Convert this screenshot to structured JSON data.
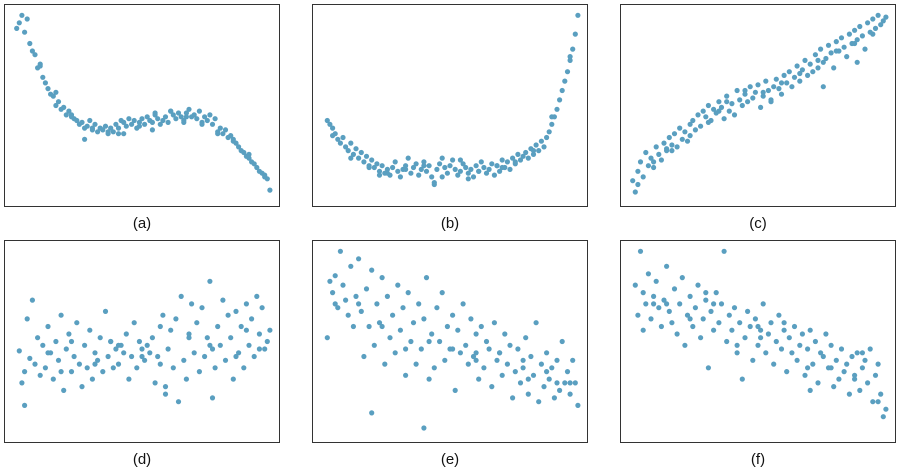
{
  "style": {
    "point_color": "#5a9fc0",
    "frame_color": "#333333"
  },
  "chart_data": [
    {
      "type": "scatter",
      "label": "(a)",
      "title": "",
      "xlabel": "",
      "ylabel": "",
      "xlim": [
        0,
        100
      ],
      "ylim": [
        0,
        100
      ],
      "grid": false,
      "ticks": false,
      "x": [
        2,
        4,
        5,
        6,
        7,
        8,
        9,
        10,
        11,
        12,
        13,
        14,
        15,
        16,
        17,
        18,
        19,
        20,
        21,
        22,
        23,
        24,
        25,
        26,
        27,
        28,
        29,
        30,
        31,
        32,
        33,
        34,
        35,
        36,
        37,
        38,
        39,
        40,
        41,
        42,
        43,
        44,
        45,
        46,
        47,
        48,
        49,
        50,
        51,
        52,
        53,
        54,
        55,
        56,
        57,
        58,
        59,
        60,
        61,
        62,
        63,
        64,
        65,
        66,
        67,
        68,
        69,
        70,
        71,
        72,
        73,
        74,
        75,
        76,
        77,
        78,
        79,
        80,
        81,
        82,
        83,
        84,
        85,
        86,
        87,
        88,
        89,
        90,
        91,
        92,
        93,
        94,
        95,
        96,
        97,
        98,
        99,
        3,
        11,
        17,
        23,
        31,
        37,
        43,
        49,
        55,
        61,
        67,
        73,
        79,
        85,
        91,
        97,
        28,
        41,
        54,
        66
      ],
      "y": [
        91,
        98,
        89,
        96,
        83,
        79,
        77,
        70,
        71,
        65,
        62,
        59,
        56,
        55,
        50,
        52,
        48,
        49,
        45,
        47,
        45,
        43,
        42,
        40,
        41,
        38,
        39,
        42,
        37,
        40,
        36,
        38,
        37,
        39,
        35,
        38,
        36,
        40,
        38,
        42,
        41,
        39,
        43,
        40,
        42,
        38,
        41,
        43,
        40,
        44,
        42,
        41,
        45,
        43,
        40,
        42,
        44,
        41,
        47,
        45,
        43,
        46,
        44,
        42,
        46,
        48,
        44,
        45,
        43,
        47,
        41,
        44,
        42,
        45,
        40,
        43,
        36,
        38,
        35,
        37,
        33,
        34,
        32,
        30,
        28,
        26,
        25,
        23,
        22,
        20,
        19,
        17,
        15,
        14,
        13,
        11,
        5,
        94,
        72,
        57,
        44,
        38,
        36,
        35,
        39,
        46,
        47,
        44,
        40,
        35,
        31,
        24,
        12,
        32,
        35,
        37,
        41
      ]
    },
    {
      "type": "scatter",
      "label": "(b)",
      "title": "",
      "xlabel": "",
      "ylabel": "",
      "xlim": [
        0,
        100
      ],
      "ylim": [
        0,
        100
      ],
      "grid": false,
      "ticks": false,
      "x": [
        3,
        4,
        5,
        6,
        7,
        8,
        9,
        10,
        11,
        12,
        13,
        14,
        15,
        16,
        17,
        18,
        19,
        20,
        21,
        22,
        23,
        24,
        25,
        26,
        27,
        28,
        29,
        30,
        31,
        32,
        33,
        34,
        35,
        36,
        37,
        38,
        39,
        40,
        41,
        42,
        43,
        44,
        45,
        46,
        47,
        48,
        49,
        50,
        51,
        52,
        53,
        54,
        55,
        56,
        57,
        58,
        59,
        60,
        61,
        62,
        63,
        64,
        65,
        66,
        67,
        68,
        69,
        70,
        71,
        72,
        73,
        74,
        75,
        76,
        77,
        78,
        79,
        80,
        81,
        82,
        83,
        84,
        85,
        86,
        87,
        88,
        89,
        90,
        91,
        92,
        93,
        94,
        95,
        96,
        97,
        98,
        99,
        5,
        12,
        19,
        26,
        33,
        40,
        47,
        54,
        61,
        68,
        75,
        82,
        89,
        96,
        23,
        44,
        57,
        70
      ],
      "y": [
        42,
        40,
        38,
        35,
        32,
        30,
        33,
        28,
        26,
        30,
        24,
        27,
        22,
        25,
        20,
        23,
        18,
        21,
        17,
        19,
        15,
        18,
        14,
        16,
        13,
        17,
        20,
        15,
        12,
        16,
        18,
        22,
        14,
        17,
        19,
        13,
        16,
        20,
        15,
        18,
        12,
        9,
        16,
        19,
        22,
        17,
        14,
        18,
        21,
        16,
        13,
        15,
        19,
        17,
        14,
        16,
        12,
        18,
        15,
        20,
        17,
        14,
        16,
        19,
        13,
        18,
        15,
        21,
        17,
        20,
        16,
        22,
        19,
        24,
        21,
        23,
        25,
        22,
        27,
        24,
        29,
        26,
        31,
        28,
        33,
        36,
        40,
        44,
        48,
        53,
        58,
        63,
        68,
        74,
        80,
        88,
        98,
        34,
        22,
        17,
        14,
        16,
        18,
        12,
        21,
        15,
        18,
        20,
        26,
        44,
        76,
        13,
        8,
        11,
        17
      ]
    },
    {
      "type": "scatter",
      "label": "(c)",
      "title": "",
      "xlabel": "",
      "ylabel": "",
      "xlim": [
        0,
        100
      ],
      "ylim": [
        0,
        100
      ],
      "grid": false,
      "ticks": false,
      "x": [
        2,
        3,
        4,
        5,
        6,
        7,
        8,
        9,
        10,
        11,
        12,
        13,
        14,
        15,
        16,
        17,
        18,
        19,
        20,
        21,
        22,
        23,
        24,
        25,
        26,
        27,
        28,
        29,
        30,
        31,
        32,
        33,
        34,
        35,
        36,
        37,
        38,
        39,
        40,
        41,
        42,
        43,
        44,
        45,
        46,
        47,
        48,
        49,
        50,
        51,
        52,
        53,
        54,
        55,
        56,
        57,
        58,
        59,
        60,
        61,
        62,
        63,
        64,
        65,
        66,
        67,
        68,
        69,
        70,
        71,
        72,
        73,
        74,
        75,
        76,
        77,
        78,
        79,
        80,
        81,
        82,
        83,
        84,
        85,
        86,
        87,
        88,
        89,
        90,
        91,
        92,
        93,
        94,
        95,
        96,
        97,
        98,
        99,
        4,
        10,
        17,
        24,
        31,
        38,
        45,
        52,
        59,
        66,
        73,
        80,
        87,
        94,
        15,
        35,
        55,
        75,
        88
      ],
      "y": [
        10,
        4,
        15,
        20,
        12,
        25,
        18,
        22,
        17,
        28,
        24,
        21,
        30,
        26,
        33,
        29,
        35,
        28,
        38,
        32,
        36,
        31,
        40,
        42,
        37,
        45,
        39,
        47,
        44,
        50,
        42,
        48,
        46,
        52,
        49,
        43,
        55,
        47,
        51,
        45,
        58,
        53,
        50,
        56,
        52,
        60,
        54,
        57,
        61,
        49,
        55,
        63,
        58,
        52,
        60,
        64,
        59,
        56,
        66,
        62,
        68,
        60,
        65,
        71,
        63,
        69,
        74,
        66,
        72,
        68,
        77,
        70,
        80,
        73,
        75,
        82,
        78,
        70,
        84,
        79,
        86,
        81,
        76,
        88,
        83,
        90,
        85,
        92,
        87,
        80,
        94,
        89,
        96,
        91,
        98,
        93,
        95,
        97,
        8,
        20,
        26,
        34,
        41,
        52,
        58,
        57,
        62,
        67,
        74,
        79,
        83,
        88,
        27,
        47,
        53,
        60,
        73
      ]
    },
    {
      "type": "scatter",
      "label": "(d)",
      "title": "",
      "xlabel": "",
      "ylabel": "",
      "xlim": [
        0,
        100
      ],
      "ylim": [
        0,
        100
      ],
      "grid": false,
      "ticks": false,
      "x": [
        3,
        4,
        5,
        6,
        7,
        8,
        9,
        10,
        11,
        12,
        13,
        14,
        15,
        16,
        17,
        18,
        19,
        20,
        21,
        22,
        23,
        24,
        25,
        26,
        27,
        28,
        29,
        30,
        31,
        32,
        33,
        34,
        35,
        36,
        37,
        38,
        39,
        40,
        41,
        42,
        43,
        44,
        45,
        46,
        47,
        48,
        49,
        50,
        51,
        52,
        53,
        54,
        55,
        56,
        57,
        58,
        59,
        60,
        61,
        62,
        63,
        64,
        65,
        66,
        67,
        68,
        69,
        70,
        71,
        72,
        73,
        74,
        75,
        76,
        77,
        78,
        79,
        80,
        81,
        82,
        83,
        84,
        85,
        86,
        87,
        88,
        89,
        90,
        91,
        92,
        93,
        94,
        95,
        96,
        97,
        98,
        99,
        5,
        14,
        23,
        32,
        41,
        50,
        59,
        68,
        77,
        86,
        95,
        19,
        38,
        57,
        76,
        90
      ],
      "y": [
        45,
        28,
        34,
        62,
        41,
        72,
        38,
        52,
        32,
        48,
        36,
        58,
        44,
        30,
        50,
        40,
        64,
        24,
        46,
        54,
        34,
        42,
        60,
        38,
        26,
        48,
        36,
        56,
        30,
        44,
        40,
        52,
        34,
        66,
        42,
        50,
        36,
        46,
        38,
        48,
        44,
        54,
        30,
        42,
        60,
        36,
        50,
        46,
        40,
        48,
        44,
        52,
        28,
        42,
        38,
        64,
        22,
        46,
        56,
        36,
        62,
        18,
        74,
        40,
        30,
        54,
        70,
        44,
        60,
        34,
        68,
        42,
        52,
        82,
        46,
        36,
        58,
        48,
        72,
        40,
        64,
        52,
        30,
        66,
        44,
        58,
        36,
        70,
        48,
        62,
        42,
        74,
        54,
        68,
        46,
        50,
        56,
        16,
        44,
        50,
        38,
        48,
        42,
        26,
        52,
        20,
        42,
        46,
        34,
        50,
        58,
        48,
        56
      ]
    },
    {
      "type": "scatter",
      "label": "(e)",
      "title": "",
      "xlabel": "",
      "ylabel": "",
      "xlim": [
        0,
        100
      ],
      "ylim": [
        0,
        100
      ],
      "grid": false,
      "ticks": false,
      "x": [
        3,
        4,
        5,
        6,
        7,
        8,
        9,
        10,
        11,
        12,
        13,
        14,
        15,
        16,
        17,
        18,
        19,
        20,
        21,
        22,
        23,
        24,
        25,
        26,
        27,
        28,
        29,
        30,
        31,
        32,
        33,
        34,
        35,
        36,
        37,
        38,
        39,
        40,
        41,
        42,
        43,
        44,
        45,
        46,
        47,
        48,
        49,
        50,
        51,
        52,
        53,
        54,
        55,
        56,
        57,
        58,
        59,
        60,
        61,
        62,
        63,
        64,
        65,
        66,
        67,
        68,
        69,
        70,
        71,
        72,
        73,
        74,
        75,
        76,
        77,
        78,
        79,
        80,
        81,
        82,
        83,
        84,
        85,
        86,
        87,
        88,
        89,
        90,
        91,
        92,
        93,
        94,
        95,
        96,
        97,
        98,
        99,
        6,
        15,
        24,
        33,
        42,
        51,
        60,
        69,
        78,
        87,
        96,
        20,
        40,
        60,
        80,
        91
      ],
      "y": [
        52,
        82,
        76,
        85,
        68,
        98,
        80,
        72,
        64,
        90,
        58,
        74,
        94,
        66,
        42,
        78,
        58,
        88,
        48,
        70,
        60,
        84,
        38,
        74,
        52,
        64,
        44,
        80,
        56,
        68,
        32,
        76,
        50,
        60,
        38,
        70,
        46,
        62,
        84,
        30,
        54,
        36,
        68,
        50,
        76,
        40,
        58,
        46,
        64,
        24,
        56,
        44,
        70,
        48,
        38,
        62,
        42,
        54,
        30,
        58,
        36,
        50,
        46,
        26,
        60,
        40,
        44,
        32,
        54,
        38,
        48,
        20,
        34,
        46,
        28,
        40,
        52,
        22,
        42,
        32,
        60,
        18,
        38,
        26,
        44,
        30,
        36,
        20,
        40,
        24,
        50,
        28,
        34,
        22,
        40,
        28,
        16,
        70,
        70,
        58,
        46,
        50,
        46,
        44,
        44,
        36,
        34,
        28,
        12,
        4,
        40,
        30,
        28
      ]
    },
    {
      "type": "scatter",
      "label": "(f)",
      "title": "",
      "xlabel": "",
      "ylabel": "",
      "xlim": [
        0,
        100
      ],
      "ylim": [
        0,
        100
      ],
      "grid": false,
      "ticks": false,
      "x": [
        3,
        4,
        5,
        6,
        7,
        8,
        9,
        10,
        11,
        12,
        13,
        14,
        15,
        16,
        17,
        18,
        19,
        20,
        21,
        22,
        23,
        24,
        25,
        26,
        27,
        28,
        29,
        30,
        31,
        32,
        33,
        34,
        35,
        36,
        37,
        38,
        39,
        40,
        41,
        42,
        43,
        44,
        45,
        46,
        47,
        48,
        49,
        50,
        51,
        52,
        53,
        54,
        55,
        56,
        57,
        58,
        59,
        60,
        61,
        62,
        63,
        64,
        65,
        66,
        67,
        68,
        69,
        70,
        71,
        72,
        73,
        74,
        75,
        76,
        77,
        78,
        79,
        80,
        81,
        82,
        83,
        84,
        85,
        86,
        87,
        88,
        89,
        90,
        91,
        92,
        93,
        94,
        95,
        96,
        97,
        98,
        99,
        6,
        15,
        24,
        33,
        42,
        51,
        60,
        69,
        78,
        87,
        96,
        10,
        30,
        50,
        70,
        90
      ],
      "y": [
        80,
        64,
        98,
        76,
        70,
        86,
        62,
        74,
        82,
        68,
        58,
        72,
        90,
        66,
        60,
        78,
        54,
        70,
        84,
        48,
        64,
        74,
        58,
        68,
        80,
        52,
        62,
        72,
        36,
        66,
        56,
        76,
        60,
        70,
        98,
        50,
        64,
        56,
        68,
        44,
        60,
        30,
        52,
        66,
        58,
        40,
        62,
        48,
        56,
        70,
        44,
        54,
        60,
        38,
        50,
        64,
        46,
        56,
        34,
        52,
        44,
        58,
        40,
        48,
        54,
        32,
        46,
        56,
        38,
        50,
        28,
        44,
        42,
        54,
        36,
        48,
        26,
        40,
        30,
        46,
        34,
        38,
        22,
        42,
        32,
        44,
        24,
        36,
        40,
        28,
        46,
        18,
        32,
        38,
        22,
        10,
        14,
        56,
        70,
        62,
        70,
        48,
        52,
        60,
        36,
        36,
        30,
        18,
        70,
        76,
        58,
        24,
        44
      ]
    }
  ]
}
